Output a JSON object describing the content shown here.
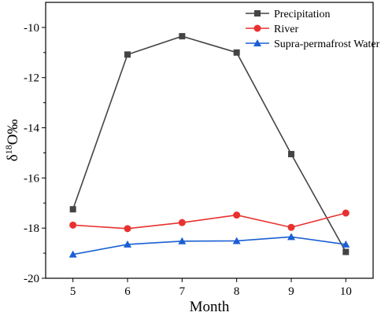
{
  "chart_data": {
    "type": "line",
    "xlabel": "Month",
    "ylabel": {
      "prefix": "δ",
      "sup": "18",
      "suffix": "O‰"
    },
    "x": [
      5,
      6,
      7,
      8,
      9,
      10
    ],
    "xlim": [
      4.5,
      10.5
    ],
    "ylim": [
      -20,
      -9
    ],
    "xticks": [
      "5",
      "6",
      "7",
      "8",
      "9",
      "10"
    ],
    "yticks": [
      "-20",
      "-18",
      "-16",
      "-14",
      "-12",
      "-10"
    ],
    "ytick_values": [
      -20,
      -18,
      -16,
      -14,
      -12,
      -10
    ],
    "grid": false,
    "legend_position": "top-right",
    "series": [
      {
        "name": "Precipitation",
        "color": "#444444",
        "marker": "square",
        "values": [
          -17.25,
          -11.08,
          -10.35,
          -11.0,
          -15.05,
          -18.95
        ]
      },
      {
        "name": "River",
        "color": "#e8312f",
        "marker": "circle",
        "values": [
          -17.88,
          -18.02,
          -17.78,
          -17.48,
          -17.97,
          -17.4
        ]
      },
      {
        "name": "Supra-permafrost Water",
        "color": "#1a5fd4",
        "marker": "triangle",
        "values": [
          -19.05,
          -18.65,
          -18.52,
          -18.51,
          -18.35,
          -18.65
        ]
      }
    ]
  }
}
